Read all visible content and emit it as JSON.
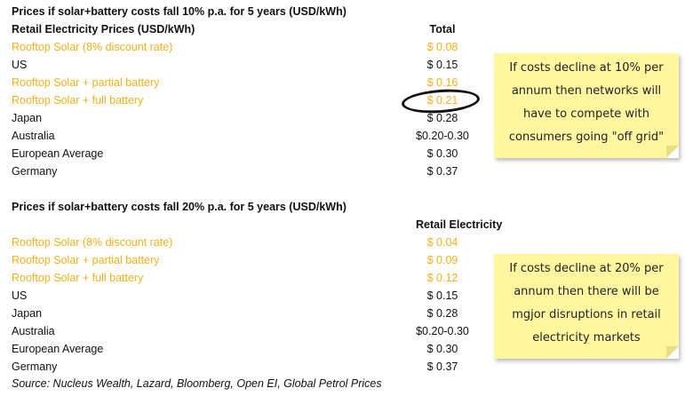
{
  "section1": {
    "title": "Prices if solar+battery costs fall 10% p.a. for 5 years (USD/kWh)",
    "subtitle": "Retail Electricity Prices (USD/kWh)",
    "column_header": "Total",
    "rows": [
      {
        "label": "Rooftop Solar (8% discount rate)",
        "value": "$ 0.08",
        "highlight": true
      },
      {
        "label": "US",
        "value": "$ 0.15",
        "highlight": false
      },
      {
        "label": "Rooftop Solar + partial battery",
        "value": "$ 0.16",
        "highlight": true
      },
      {
        "label": "Rooftop Solar + full battery",
        "value": "$ 0.21",
        "highlight": true
      },
      {
        "label": "Japan",
        "value": "$ 0.28",
        "highlight": false
      },
      {
        "label": "Australia",
        "value": "$0.20-0.30",
        "highlight": false
      },
      {
        "label": "European Average",
        "value": "$ 0.30",
        "highlight": false
      },
      {
        "label": "Germany",
        "value": "$ 0.37",
        "highlight": false
      }
    ],
    "note_lines": [
      "If costs decline at 10% per",
      "annum then networks will",
      "have to compete with",
      "consumers going \"off grid\""
    ]
  },
  "section2": {
    "title": "Prices if solar+battery costs fall 20% p.a. for 5 years (USD/kWh)",
    "column_header": "Retail Electricity",
    "rows": [
      {
        "label": "Rooftop Solar (8% discount rate)",
        "value": "$ 0.04",
        "highlight": true
      },
      {
        "label": "Rooftop Solar + partial battery",
        "value": "$ 0.09",
        "highlight": true
      },
      {
        "label": "Rooftop Solar + full battery",
        "value": "$ 0.12",
        "highlight": true
      },
      {
        "label": "US",
        "value": "$ 0.15",
        "highlight": false
      },
      {
        "label": "Japan",
        "value": "$ 0.28",
        "highlight": false
      },
      {
        "label": "Australia",
        "value": "$0.20-0.30",
        "highlight": false
      },
      {
        "label": "European Average",
        "value": "$ 0.30",
        "highlight": false
      },
      {
        "label": "Germany",
        "value": "$ 0.37",
        "highlight": false
      }
    ],
    "note_lines": [
      "If costs decline at 20% per",
      "annum then there will be",
      "mgjor disruptions in retail",
      "electricity markets"
    ]
  },
  "source": "Source: Nucleus Wealth, Lazard, Bloomberg, Open EI, Global Petrol Prices",
  "colors": {
    "highlight": "#f2b01d",
    "note_background": "#fff7a0"
  }
}
